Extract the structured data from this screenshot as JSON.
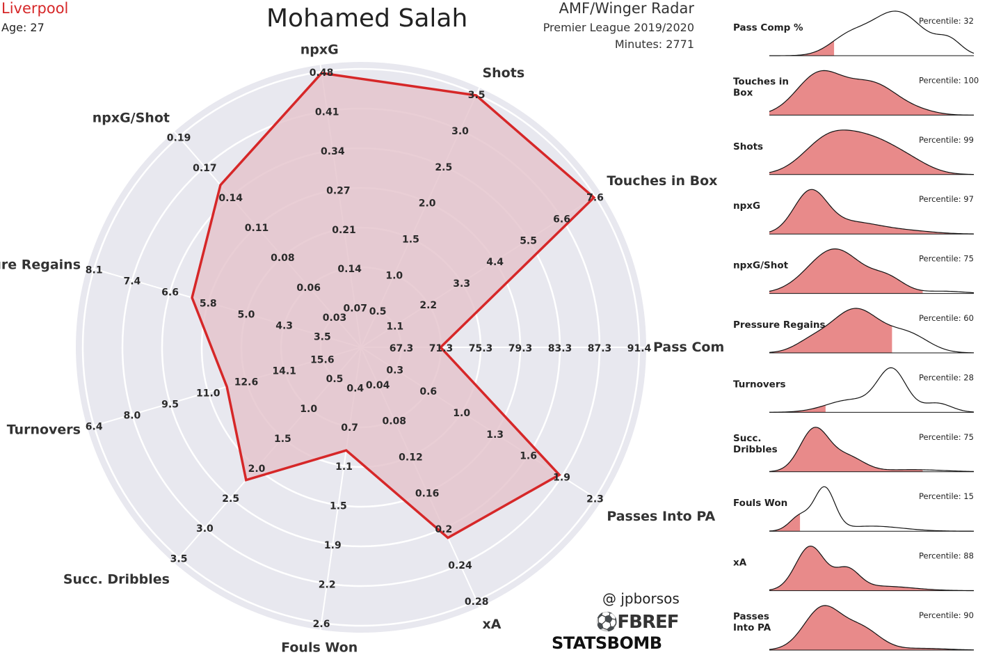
{
  "header": {
    "team": "Liverpool",
    "age": "Age: 27",
    "player": "Mohamed Salah",
    "radar_title": "AMF/Winger Radar",
    "league": "Premier League 2019/2020",
    "minutes": "Minutes: 2771"
  },
  "footer": {
    "credit": "@ jpborsos",
    "fbref": "FBREF",
    "statsbomb": "STATSBOMB"
  },
  "colors": {
    "accent": "#d62728",
    "radar_fill": "#e3c2cb",
    "radar_bg": "#e8e8ef",
    "kde_fill": "#e88a8a"
  },
  "chart_data": [
    {
      "type": "radar",
      "title": "Mohamed Salah",
      "rings": 6,
      "axes": [
        {
          "label": "Pass Comp %",
          "ticks": [
            "67.3",
            "71.3",
            "75.3",
            "79.3",
            "83.3",
            "87.3",
            "91.4"
          ],
          "value": 71.3,
          "min": 67.3,
          "max": 91.4
        },
        {
          "label": "Touches in Box",
          "ticks": [
            "1.1",
            "2.2",
            "3.3",
            "4.4",
            "5.5",
            "6.6",
            "7.6"
          ],
          "value": 7.6,
          "min": 0,
          "max": 7.6
        },
        {
          "label": "Shots",
          "ticks": [
            "0.5",
            "1.0",
            "1.5",
            "2.0",
            "2.5",
            "3.0",
            "3.5"
          ],
          "value": 3.5,
          "min": 0,
          "max": 3.5
        },
        {
          "label": "npxG",
          "ticks": [
            "0.07",
            "0.14",
            "0.21",
            "0.27",
            "0.34",
            "0.41",
            "0.48"
          ],
          "value": 0.48,
          "min": 0,
          "max": 0.48
        },
        {
          "label": "npxG/Shot",
          "ticks": [
            "0.03",
            "0.06",
            "0.08",
            "0.11",
            "0.14",
            "0.17",
            "0.19"
          ],
          "value": 0.14,
          "min": 0,
          "max": 0.19
        },
        {
          "label": "Pressure Regains",
          "ticks": [
            "3.5",
            "4.3",
            "5.0",
            "5.8",
            "6.6",
            "7.4",
            "8.1"
          ],
          "value": 5.8,
          "min": 2.7,
          "max": 8.1
        },
        {
          "label": "Turnovers",
          "ticks": [
            "15.6",
            "14.1",
            "12.6",
            "11.0",
            "9.5",
            "8.0",
            "6.4"
          ],
          "value": 12.6,
          "min": 17.1,
          "max": 6.4
        },
        {
          "label": "Succ. Dribbles",
          "ticks": [
            "0.5",
            "1.0",
            "1.5",
            "2.0",
            "2.5",
            "3.0",
            "3.5"
          ],
          "value": 2.0,
          "min": 0,
          "max": 3.5
        },
        {
          "label": "Fouls Won",
          "ticks": [
            "0.4",
            "0.7",
            "1.1",
            "1.5",
            "1.9",
            "2.2",
            "2.6"
          ],
          "value": 0.7,
          "min": 0,
          "max": 2.6
        },
        {
          "label": "xA",
          "ticks": [
            "0.04",
            "0.08",
            "0.12",
            "0.16",
            "0.2",
            "0.24",
            "0.28"
          ],
          "value": 0.2,
          "min": 0,
          "max": 0.28
        },
        {
          "label": "Passes Into PA",
          "ticks": [
            "0.3",
            "0.6",
            "1.0",
            "1.3",
            "1.6",
            "1.9",
            "2.3"
          ],
          "value": 1.9,
          "min": 0,
          "max": 2.3
        }
      ]
    },
    {
      "type": "area",
      "panels": [
        {
          "label": "Pass Comp %",
          "percentile_text": "Percentile: 32",
          "percentile": 32,
          "peaks": [
            [
              0.62,
              1.0,
              0.13
            ],
            [
              0.38,
              0.35,
              0.09
            ],
            [
              0.88,
              0.3,
              0.06
            ]
          ]
        },
        {
          "label": "Touches in Box",
          "percentile_text": "Percentile: 100",
          "percentile": 100,
          "peaks": [
            [
              0.24,
              1.0,
              0.11
            ],
            [
              0.5,
              0.8,
              0.13
            ],
            [
              0.75,
              0.05,
              0.08
            ]
          ]
        },
        {
          "label": "Shots",
          "percentile_text": "Percentile: 99",
          "percentile": 99,
          "peaks": [
            [
              0.28,
              0.95,
              0.12
            ],
            [
              0.5,
              1.0,
              0.14
            ],
            [
              0.7,
              0.2,
              0.1
            ]
          ]
        },
        {
          "label": "npxG",
          "percentile_text": "Percentile: 97",
          "percentile": 97,
          "peaks": [
            [
              0.2,
              1.0,
              0.08
            ],
            [
              0.4,
              0.3,
              0.15
            ],
            [
              0.7,
              0.06,
              0.12
            ]
          ]
        },
        {
          "label": "npxG/Shot",
          "percentile_text": "Percentile: 75",
          "percentile": 75,
          "peaks": [
            [
              0.32,
              1.0,
              0.13
            ],
            [
              0.58,
              0.3,
              0.08
            ],
            [
              0.85,
              0.05,
              0.1
            ]
          ]
        },
        {
          "label": "Pressure Regains",
          "percentile_text": "Percentile: 60",
          "percentile": 60,
          "peaks": [
            [
              0.42,
              1.0,
              0.12
            ],
            [
              0.2,
              0.2,
              0.08
            ],
            [
              0.68,
              0.4,
              0.1
            ]
          ]
        },
        {
          "label": "Turnovers",
          "percentile_text": "Percentile: 28",
          "percentile": 28,
          "peaks": [
            [
              0.6,
              1.0,
              0.07
            ],
            [
              0.4,
              0.3,
              0.12
            ],
            [
              0.82,
              0.22,
              0.07
            ]
          ]
        },
        {
          "label": "Succ. Dribbles",
          "percentile_text": "Percentile: 75",
          "percentile": 75,
          "peaks": [
            [
              0.22,
              1.0,
              0.07
            ],
            [
              0.38,
              0.35,
              0.08
            ],
            [
              0.7,
              0.05,
              0.15
            ]
          ]
        },
        {
          "label": "Fouls Won",
          "percentile_text": "Percentile: 15",
          "percentile": 15,
          "peaks": [
            [
              0.27,
              1.0,
              0.05
            ],
            [
              0.15,
              0.35,
              0.05
            ],
            [
              0.5,
              0.12,
              0.15
            ]
          ]
        },
        {
          "label": "xA",
          "percentile_text": "Percentile: 88",
          "percentile": 88,
          "peaks": [
            [
              0.2,
              1.0,
              0.07
            ],
            [
              0.38,
              0.45,
              0.06
            ],
            [
              0.55,
              0.1,
              0.15
            ]
          ]
        },
        {
          "label": "Passes Into PA",
          "percentile_text": "Percentile: 90",
          "percentile": 90,
          "peaks": [
            [
              0.26,
              1.0,
              0.09
            ],
            [
              0.45,
              0.5,
              0.09
            ],
            [
              0.75,
              0.04,
              0.12
            ]
          ]
        }
      ]
    }
  ]
}
